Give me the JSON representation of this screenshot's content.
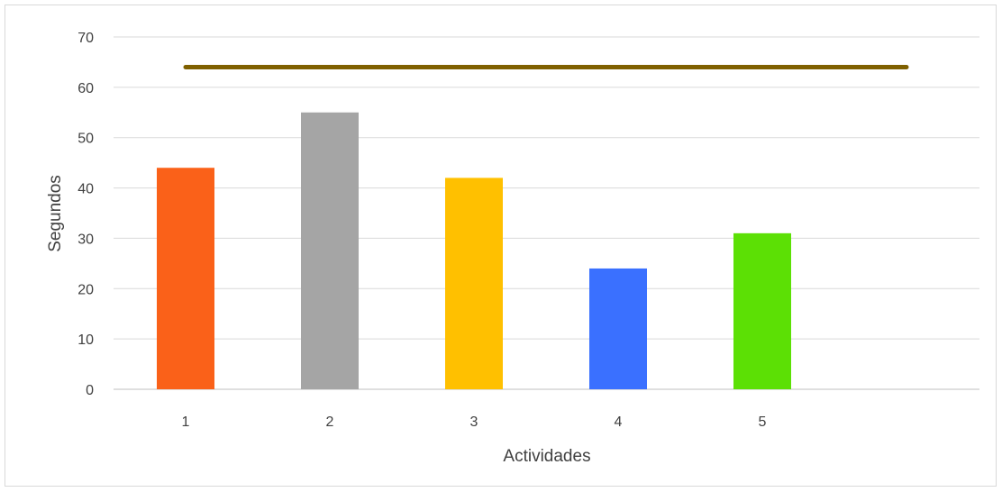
{
  "chart_data": {
    "type": "bar",
    "title": "",
    "xlabel": "Actividades",
    "ylabel": "Segundos",
    "categories": [
      "1",
      "2",
      "3",
      "4",
      "5",
      ""
    ],
    "values": [
      44,
      55,
      42,
      24,
      31,
      null
    ],
    "bar_colors": [
      "#FA6119",
      "#A5A5A5",
      "#FFC000",
      "#3A70FF",
      "#5CE005",
      null
    ],
    "reference_line": {
      "value": 64,
      "color": "#7F6000"
    },
    "ylim": [
      0,
      70
    ],
    "yticks": [
      "0",
      "10",
      "20",
      "30",
      "40",
      "50",
      "60",
      "70"
    ],
    "ytick_values": [
      0,
      10,
      20,
      30,
      40,
      50,
      60,
      70
    ],
    "grid": true,
    "legend": "none"
  }
}
